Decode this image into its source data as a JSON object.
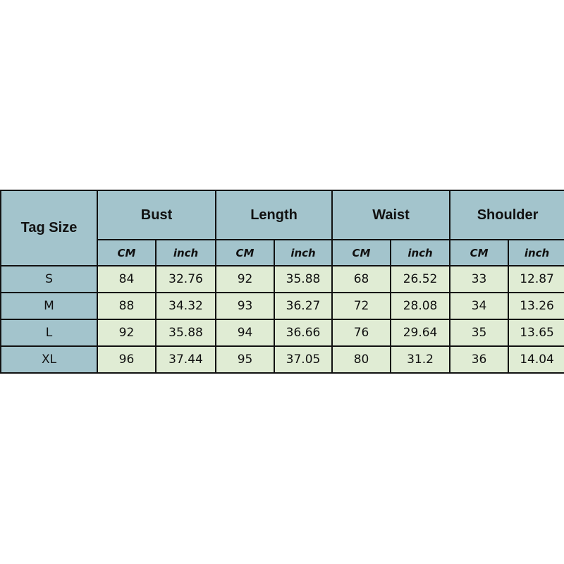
{
  "table": {
    "corner_label": "Tag Size",
    "groups": [
      "Bust",
      "Length",
      "Waist",
      "Shoulder"
    ],
    "units": [
      "CM",
      "inch"
    ],
    "rows": [
      {
        "size": "S",
        "values": [
          "84",
          "32.76",
          "92",
          "35.88",
          "68",
          "26.52",
          "33",
          "12.87"
        ]
      },
      {
        "size": "M",
        "values": [
          "88",
          "34.32",
          "93",
          "36.27",
          "72",
          "28.08",
          "34",
          "13.26"
        ]
      },
      {
        "size": "L",
        "values": [
          "92",
          "35.88",
          "94",
          "36.66",
          "76",
          "29.64",
          "35",
          "13.65"
        ]
      },
      {
        "size": "XL",
        "values": [
          "96",
          "37.44",
          "95",
          "37.05",
          "80",
          "31.2",
          "36",
          "14.04"
        ]
      }
    ]
  },
  "colors": {
    "header": "#a3c4cc",
    "cell": "#e0ecd4",
    "border": "#111111"
  }
}
